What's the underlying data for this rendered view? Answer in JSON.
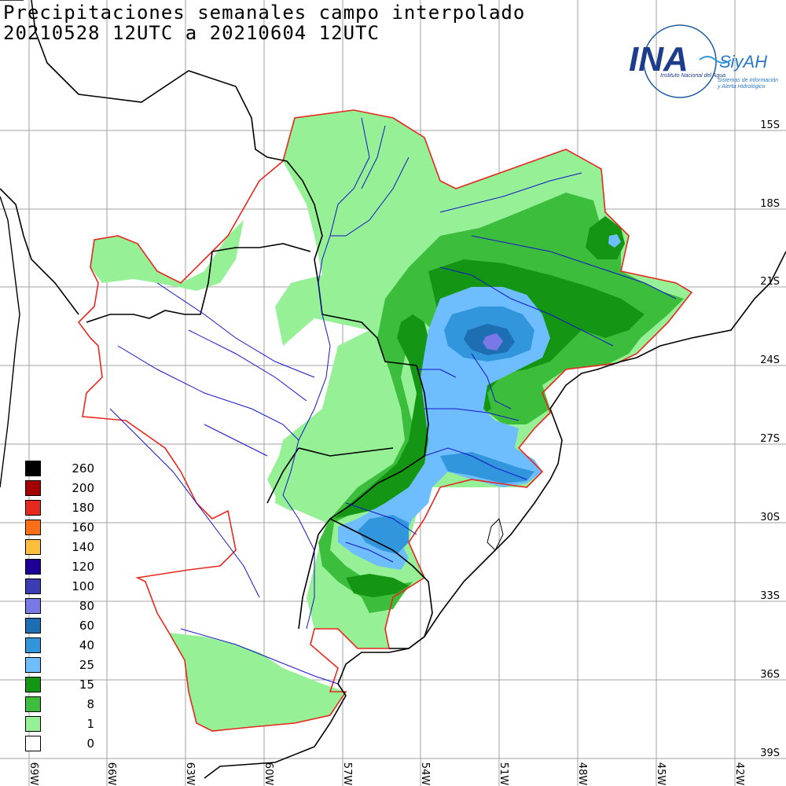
{
  "title": {
    "line1": "Precipitaciones semanales campo interpolado",
    "line2": "20210528 12UTC a 20210604 12UTC"
  },
  "logo": {
    "ina": "INA",
    "siyah": "SiyAH",
    "institute": "Instituto Nacional del Agua",
    "system_line1": "Sistemas de Información",
    "system_line2": "y Alerta Hidrológico"
  },
  "legend": [
    {
      "value": "260",
      "color": "#000000"
    },
    {
      "value": "200",
      "color": "#a50000"
    },
    {
      "value": "180",
      "color": "#e6281e"
    },
    {
      "value": "160",
      "color": "#ff6e14"
    },
    {
      "value": "140",
      "color": "#ffbe3c"
    },
    {
      "value": "120",
      "color": "#1e0096"
    },
    {
      "value": "100",
      "color": "#3c3cb4"
    },
    {
      "value": "80",
      "color": "#7878e6"
    },
    {
      "value": "60",
      "color": "#1e6eb4"
    },
    {
      "value": "40",
      "color": "#3296dc"
    },
    {
      "value": "25",
      "color": "#6ebeff"
    },
    {
      "value": "15",
      "color": "#149614"
    },
    {
      "value": "8",
      "color": "#3cbe3c"
    },
    {
      "value": "1",
      "color": "#96f096"
    },
    {
      "value": "0",
      "color": "#ffffff"
    }
  ],
  "lat_labels": [
    "15S",
    "18S",
    "21S",
    "24S",
    "27S",
    "30S",
    "33S",
    "36S",
    "39S"
  ],
  "lon_labels": [
    "69W",
    "66W",
    "63W",
    "60W",
    "57W",
    "54W",
    "51W",
    "48W",
    "45W",
    "42W"
  ]
}
